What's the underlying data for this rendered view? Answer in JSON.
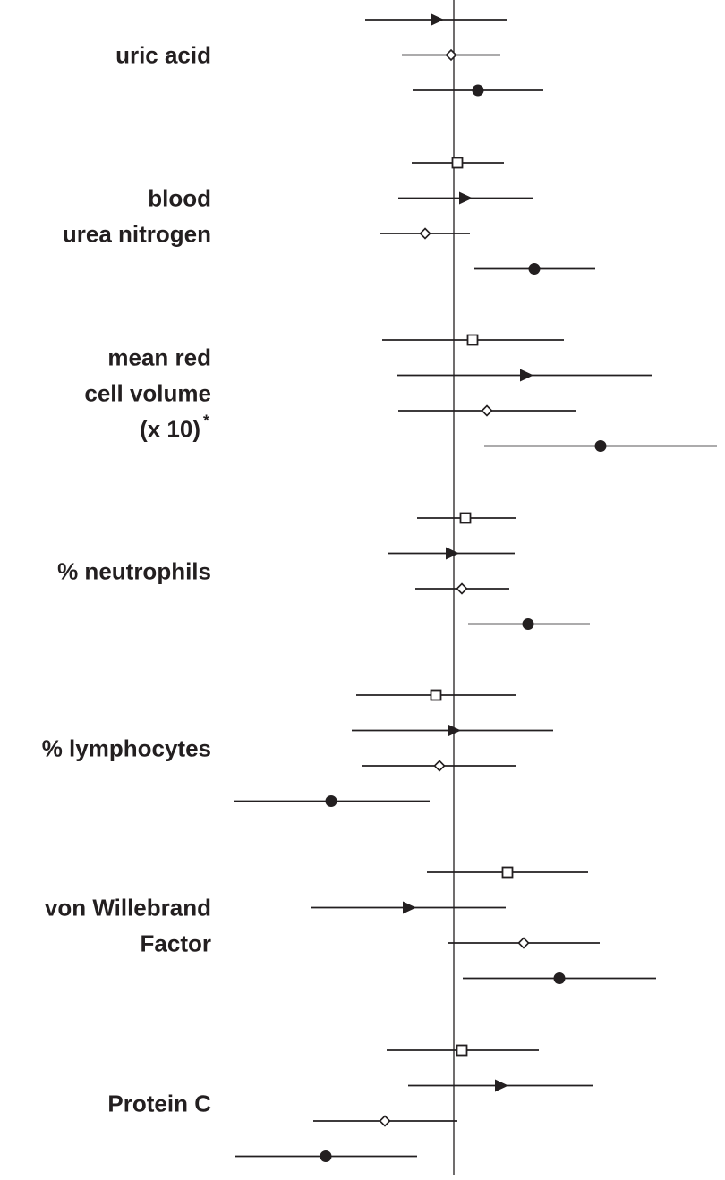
{
  "chart_data": {
    "type": "forest",
    "marker_colors": {
      "stroke": "#231f20",
      "fill_open": "#ffffff",
      "fill_solid": "#231f20"
    },
    "marker_types": [
      "square-open",
      "triangle-filled",
      "diamond-open",
      "circle-filled"
    ],
    "groups": [
      {
        "label_lines": [
          "uric acid"
        ],
        "rows": [
          {
            "marker": "triangle-filled",
            "lo": 408,
            "est": 487,
            "hi": 566
          },
          {
            "marker": "diamond-open",
            "lo": 449,
            "est": 504,
            "hi": 559
          },
          {
            "marker": "circle-filled",
            "lo": 461,
            "est": 534,
            "hi": 607
          }
        ]
      },
      {
        "label_lines": [
          "blood",
          "urea nitrogen"
        ],
        "rows": [
          {
            "marker": "square-open",
            "lo": 460,
            "est": 511,
            "hi": 563
          },
          {
            "marker": "triangle-filled",
            "lo": 445,
            "est": 519,
            "hi": 596
          },
          {
            "marker": "diamond-open",
            "lo": 425,
            "est": 475,
            "hi": 525
          },
          {
            "marker": "circle-filled",
            "lo": 530,
            "est": 597,
            "hi": 665
          }
        ]
      },
      {
        "label_lines": [
          "mean red",
          "cell volume",
          "(x 10)"
        ],
        "label_superscript": "*",
        "rows": [
          {
            "marker": "square-open",
            "lo": 427,
            "est": 528,
            "hi": 630
          },
          {
            "marker": "triangle-filled",
            "lo": 444,
            "est": 587,
            "hi": 728
          },
          {
            "marker": "diamond-open",
            "lo": 445,
            "est": 544,
            "hi": 643
          },
          {
            "marker": "circle-filled",
            "lo": 541,
            "est": 671,
            "hi": 801
          }
        ]
      },
      {
        "label_lines": [
          "% neutrophils"
        ],
        "rows": [
          {
            "marker": "square-open",
            "lo": 466,
            "est": 520,
            "hi": 576
          },
          {
            "marker": "triangle-filled",
            "lo": 433,
            "est": 504,
            "hi": 575
          },
          {
            "marker": "diamond-open",
            "lo": 464,
            "est": 516,
            "hi": 569
          },
          {
            "marker": "circle-filled",
            "lo": 523,
            "est": 590,
            "hi": 659
          }
        ]
      },
      {
        "label_lines": [
          "% lymphocytes"
        ],
        "rows": [
          {
            "marker": "square-open",
            "lo": 398,
            "est": 487,
            "hi": 577
          },
          {
            "marker": "triangle-filled",
            "lo": 393,
            "est": 506,
            "hi": 618
          },
          {
            "marker": "diamond-open",
            "lo": 405,
            "est": 491,
            "hi": 577
          },
          {
            "marker": "circle-filled",
            "lo": 261,
            "est": 370,
            "hi": 480
          }
        ]
      },
      {
        "label_lines": [
          "von Willebrand",
          "Factor"
        ],
        "rows": [
          {
            "marker": "square-open",
            "lo": 477,
            "est": 567,
            "hi": 657
          },
          {
            "marker": "triangle-filled",
            "lo": 347,
            "est": 456,
            "hi": 565
          },
          {
            "marker": "diamond-open",
            "lo": 500,
            "est": 585,
            "hi": 670
          },
          {
            "marker": "circle-filled",
            "lo": 517,
            "est": 625,
            "hi": 733
          }
        ]
      },
      {
        "label_lines": [
          "Protein C"
        ],
        "rows": [
          {
            "marker": "square-open",
            "lo": 432,
            "est": 516,
            "hi": 602
          },
          {
            "marker": "triangle-filled",
            "lo": 456,
            "est": 559,
            "hi": 662
          },
          {
            "marker": "diamond-open",
            "lo": 350,
            "est": 430,
            "hi": 511
          },
          {
            "marker": "circle-filled",
            "lo": 263,
            "est": 364,
            "hi": 466
          }
        ]
      }
    ],
    "reference_line": 507,
    "xlim": [
      0,
      810
    ],
    "grid": false,
    "legend": "none"
  }
}
